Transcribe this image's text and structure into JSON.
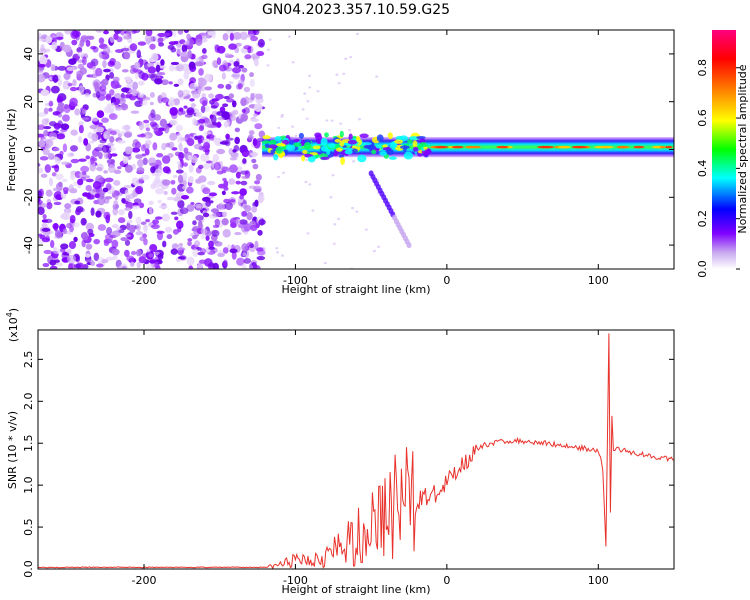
{
  "title": "GN04.2023.357.10.59.G25",
  "chart_data": [
    {
      "type": "heatmap",
      "xlabel": "Height of straight line (km)",
      "ylabel": "Frequency (Hz)",
      "xlim": [
        -270,
        150
      ],
      "ylim": [
        -50,
        50
      ],
      "x_ticks": [
        -200,
        -100,
        0,
        100
      ],
      "x_tick_labels": [
        "-200",
        "-100",
        "0",
        "100"
      ],
      "y_ticks": [
        -40,
        -20,
        0,
        20,
        40
      ],
      "y_tick_labels": [
        "-40",
        "-20",
        "0",
        "20",
        "40"
      ],
      "colorbar": {
        "label": "Normalized spectral amplitude",
        "range": [
          0.0,
          0.95
        ],
        "ticks": [
          0.0,
          0.2,
          0.4,
          0.6,
          0.8
        ],
        "tick_labels": [
          "0.0",
          "0.2",
          "0.4",
          "0.6",
          "0.8"
        ],
        "colormap": [
          "#ffffff",
          "#7f00ff",
          "#0000ff",
          "#00ffff",
          "#00ff00",
          "#ffff00",
          "#ff7f00",
          "#ff0000",
          "#ff00ff"
        ]
      },
      "features": [
        {
          "description": "broadband noise (amplitude ~0.1-0.3)",
          "x_range": [
            -270,
            -122
          ],
          "freq_range": [
            -50,
            50
          ]
        },
        {
          "description": "strong narrow band near 0 Hz (amplitude ~0.5-0.95)",
          "x_range": [
            -122,
            150
          ],
          "freq_center": 1,
          "freq_halfwidth": 3
        },
        {
          "description": "weak descending branch",
          "x_start": -50,
          "x_end": -25,
          "freq_start": -10,
          "freq_end": -40
        }
      ]
    },
    {
      "type": "line",
      "xlabel": "Height of straight line (km)",
      "ylabel": "SNR (10 * v/v)",
      "y_scale_note": "(x10",
      "y_scale_exponent": "4",
      "y_scale_close": ")",
      "xlim": [
        -270,
        150
      ],
      "ylim": [
        0,
        2.85
      ],
      "x_ticks": [
        -200,
        -100,
        0,
        100
      ],
      "x_tick_labels": [
        "-200",
        "-100",
        "0",
        "100"
      ],
      "y_ticks": [
        0.0,
        0.5,
        1.0,
        1.5,
        2.0,
        2.5
      ],
      "y_tick_labels": [
        "0.0",
        "0.5",
        "1.0",
        "1.5",
        "2.0",
        "2.5"
      ],
      "color": "#e8322b",
      "series": [
        {
          "x": [
            -270,
            -260,
            -240,
            -220,
            -200,
            -180,
            -160,
            -140,
            -125,
            -115,
            -105,
            -95,
            -85,
            -75,
            -65,
            -55,
            -45,
            -35,
            -25,
            -15,
            -5,
            5,
            15,
            25,
            35,
            45,
            55,
            65,
            75,
            85,
            95,
            100,
            103,
            105,
            107,
            108,
            109,
            110,
            112,
            115,
            125,
            135,
            150
          ],
          "values": [
            0.02,
            0.02,
            0.02,
            0.02,
            0.02,
            0.02,
            0.02,
            0.02,
            0.02,
            0.03,
            0.08,
            0.12,
            0.15,
            0.2,
            0.3,
            0.45,
            0.6,
            0.75,
            0.8,
            0.85,
            0.9,
            1.15,
            1.35,
            1.48,
            1.52,
            1.53,
            1.52,
            1.5,
            1.48,
            1.45,
            1.43,
            1.42,
            1.2,
            0.25,
            2.8,
            0.7,
            1.8,
            1.4,
            1.45,
            1.42,
            1.38,
            1.35,
            1.3
          ]
        }
      ]
    }
  ]
}
